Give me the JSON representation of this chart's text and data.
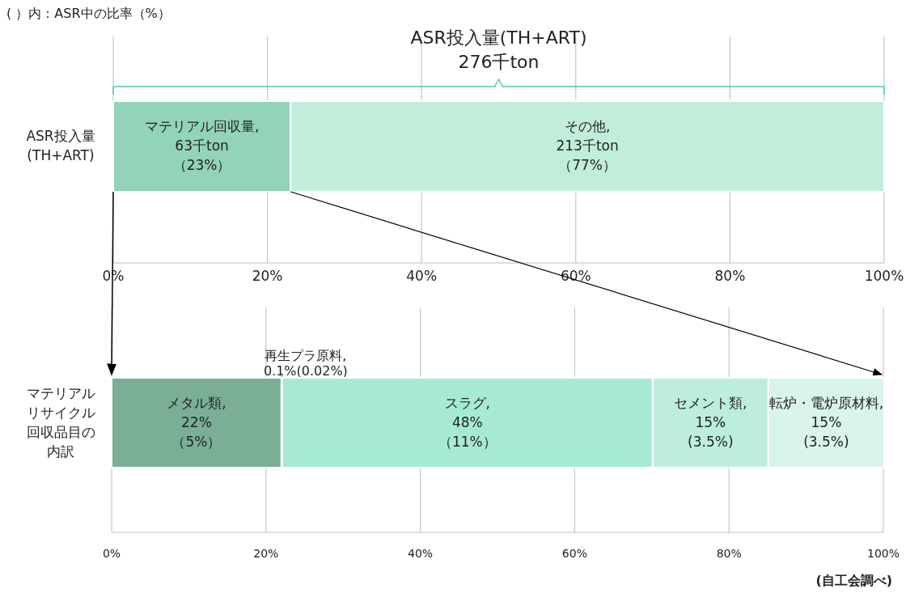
{
  "chart_data": [
    {
      "type": "bar",
      "orientation": "horizontal",
      "stacked": true,
      "grid": "x",
      "legend": false,
      "categories": [
        "ASR投入量\n(TH+ART)"
      ],
      "series": [
        {
          "name": "マテリアル回収量,",
          "color": "#93d3b8",
          "values": [
            23
          ],
          "value_labels": [
            "63千ton\n（23%）"
          ]
        },
        {
          "name": "その他,",
          "color": "#c0eedb",
          "values": [
            77
          ],
          "value_labels": [
            "213千ton\n（77%）"
          ]
        }
      ],
      "xlim": [
        0,
        100
      ],
      "xticks": [
        {
          "value": 0,
          "label": "0%"
        },
        {
          "value": 20,
          "label": "20%"
        },
        {
          "value": 40,
          "label": "40%"
        },
        {
          "value": 60,
          "label": "60%"
        },
        {
          "value": 80,
          "label": "80%"
        },
        {
          "value": 100,
          "label": "100%"
        }
      ],
      "annotations": [
        "( ）内：ASR中の比率（%）",
        "ASR投入量(TH+ART)\n276千ton"
      ]
    },
    {
      "type": "bar",
      "orientation": "horizontal",
      "stacked": true,
      "grid": "x",
      "legend": false,
      "categories": [
        "マテリアルリサイクル回収品目の内訳"
      ],
      "series": [
        {
          "name": "メタル類,",
          "color": "#7aaf96",
          "values": [
            22
          ],
          "value_labels": [
            "22%\n（5%）"
          ]
        },
        {
          "name": "再生プラ原料,",
          "color": "#e6f5ee",
          "values": [
            0.1
          ],
          "value_labels": [
            "0.1%(0.02%)"
          ]
        },
        {
          "name": "スラグ,",
          "color": "#a6ead2",
          "values": [
            48
          ],
          "value_labels": [
            "48%\n（11%）"
          ]
        },
        {
          "name": "セメント類,",
          "color": "#bdeedd",
          "values": [
            15
          ],
          "value_labels": [
            "15%\n(3.5%)"
          ]
        },
        {
          "name": "転炉・電炉原材料,",
          "color": "#d9f5e9",
          "values": [
            15
          ],
          "value_labels": [
            "15%\n(3.5%)"
          ]
        }
      ],
      "xlim": [
        0,
        100
      ],
      "xticks": [
        {
          "value": 0,
          "label": "0%"
        },
        {
          "value": 20,
          "label": "20%"
        },
        {
          "value": 40,
          "label": "40%"
        },
        {
          "value": 60,
          "label": "60%"
        },
        {
          "value": 80,
          "label": "80%"
        },
        {
          "value": 100,
          "label": "100%"
        }
      ],
      "annotations": [
        "(自工会調べ)"
      ]
    }
  ]
}
